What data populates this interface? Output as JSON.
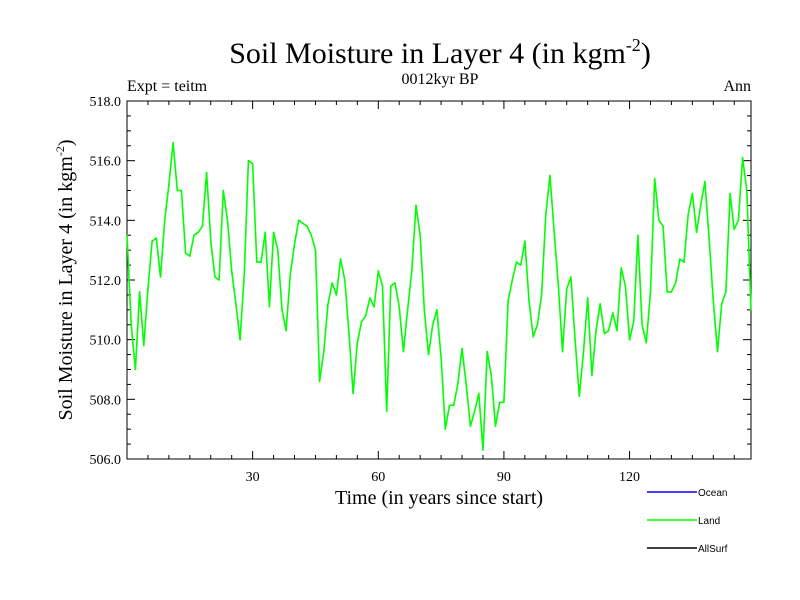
{
  "chart_data": {
    "type": "line",
    "title": "Soil Moisture in Layer 4 (in kgm",
    "title_sup": "-2",
    "title_close": ")",
    "subtitle_left": "Expt = teitm",
    "subtitle_center": "0012kyr BP",
    "subtitle_right": "Ann",
    "xlabel": "Time (in years since start)",
    "ylabel": "Soil Moisture in Layer 4 (in kgm",
    "ylabel_sup": "-2",
    "ylabel_close": ")",
    "xlim": [
      0,
      149
    ],
    "ylim": [
      506.0,
      518.0
    ],
    "x_ticks": [
      30,
      60,
      90,
      120
    ],
    "x_tick_labels": [
      "30",
      "60",
      "90",
      "120"
    ],
    "y_ticks": [
      506,
      508,
      510,
      512,
      514,
      516,
      518
    ],
    "y_tick_labels": [
      "506.0",
      "508.0",
      "510.0",
      "512.0",
      "514.0",
      "516.0",
      "518.0"
    ],
    "legend": [
      {
        "name": "Ocean",
        "color": "#0000ff"
      },
      {
        "name": "Land",
        "color": "#00ff00"
      },
      {
        "name": "AllSurf",
        "color": "#000000"
      }
    ],
    "series": [
      {
        "name": "Land",
        "color": "#00ff00",
        "x_start": 0,
        "x_step": 1,
        "values": [
          513.5,
          510.5,
          509.0,
          511.6,
          509.8,
          511.7,
          513.3,
          513.4,
          512.1,
          514.0,
          515.2,
          516.6,
          515.0,
          515.0,
          512.9,
          512.8,
          513.5,
          513.6,
          513.8,
          515.6,
          513.3,
          512.1,
          512.0,
          515.0,
          514.0,
          512.3,
          511.2,
          510.0,
          512.2,
          516.0,
          515.9,
          512.6,
          512.6,
          513.6,
          511.1,
          513.6,
          513.0,
          511.0,
          510.3,
          512.2,
          513.2,
          514.0,
          513.9,
          513.8,
          513.5,
          513.0,
          508.6,
          509.6,
          511.2,
          511.9,
          511.5,
          512.7,
          512.0,
          510.2,
          508.2,
          509.9,
          510.6,
          510.8,
          511.4,
          511.1,
          512.3,
          511.8,
          507.6,
          511.8,
          511.9,
          511.1,
          509.6,
          511.0,
          512.3,
          514.5,
          513.5,
          511.0,
          509.5,
          510.5,
          511.0,
          509.4,
          507.0,
          507.8,
          507.8,
          508.5,
          509.7,
          508.5,
          507.1,
          507.6,
          508.2,
          506.3,
          509.6,
          508.8,
          507.1,
          507.9,
          507.9,
          511.3,
          512.0,
          512.6,
          512.5,
          513.3,
          511.3,
          510.1,
          510.5,
          511.5,
          514.2,
          515.5,
          513.6,
          511.8,
          509.6,
          511.7,
          512.1,
          510.0,
          508.1,
          509.6,
          511.4,
          508.8,
          510.3,
          511.2,
          510.2,
          510.3,
          510.9,
          510.3,
          512.4,
          511.8,
          510.0,
          510.6,
          513.5,
          510.5,
          509.9,
          511.6,
          515.4,
          514.0,
          513.8,
          511.6,
          511.6,
          511.9,
          512.7,
          512.6,
          514.2,
          514.9,
          513.6,
          514.5,
          515.3,
          513.4,
          511.3,
          509.6,
          511.2,
          511.6,
          514.9,
          513.7,
          514.0,
          516.1,
          515.0,
          511.0
        ]
      }
    ]
  }
}
